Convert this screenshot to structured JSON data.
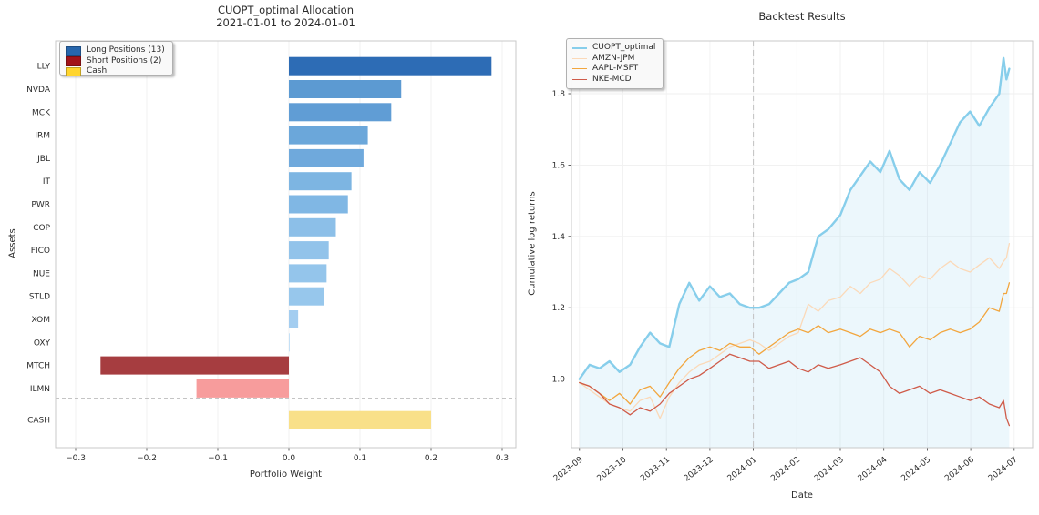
{
  "chart_data": [
    {
      "type": "bar",
      "orientation": "horizontal",
      "title_line1": "CUOPT_optimal Allocation",
      "title_line2": "2021-01-01 to 2024-01-01",
      "xlabel": "Portfolio Weight",
      "ylabel": "Assets",
      "xlim": [
        -0.328,
        0.322
      ],
      "xticks": [
        -0.3,
        -0.2,
        -0.1,
        0.0,
        0.1,
        0.2,
        0.3
      ],
      "xtick_labels": [
        "−0.3",
        "−0.2",
        "−0.1",
        "0.0",
        "0.1",
        "0.2",
        "0.3"
      ],
      "categories": [
        "LLY",
        "NVDA",
        "MCK",
        "IRM",
        "JBL",
        "IT",
        "PWR",
        "COP",
        "FICO",
        "NUE",
        "STLD",
        "XOM",
        "OXY",
        "MTCH",
        "ILMN",
        "CASH"
      ],
      "values": [
        0.285,
        0.158,
        0.144,
        0.111,
        0.105,
        0.088,
        0.083,
        0.066,
        0.056,
        0.053,
        0.049,
        0.013,
        0.001,
        -0.265,
        -0.13,
        0.2
      ],
      "groups": [
        "long",
        "long",
        "long",
        "long",
        "long",
        "long",
        "long",
        "long",
        "long",
        "long",
        "long",
        "long",
        "long",
        "short",
        "short",
        "cash"
      ],
      "bar_colors": [
        "#2d6cb5",
        "#5c9ad2",
        "#609dd5",
        "#6ba7da",
        "#6fa9dc",
        "#7db5e2",
        "#80b7e4",
        "#8cbfe8",
        "#92c3ea",
        "#94c5eb",
        "#97c7ec",
        "#a3cdf0",
        "#b5d8f4",
        "#a63d40",
        "#f79c9c",
        "#f9e089"
      ],
      "separator_before_category": "CASH",
      "legend": [
        {
          "label": "Long Positions (13)",
          "color": "#2766ac"
        },
        {
          "label": "Short Positions (2)",
          "color": "#a21318"
        },
        {
          "label": "Cash",
          "color": "#ffd52e"
        }
      ]
    },
    {
      "type": "line",
      "title": "Backtest Results",
      "xlabel": "Date",
      "ylabel": "Cumulative log returns",
      "ylim": [
        0.81,
        1.95
      ],
      "yticks": [
        1.0,
        1.2,
        1.4,
        1.6,
        1.8
      ],
      "ytick_labels": [
        "1.0",
        "1.2",
        "1.4",
        "1.6",
        "1.8"
      ],
      "xtick_labels": [
        "2023-09",
        "2023-10",
        "2023-11",
        "2023-12",
        "2024-01",
        "2024-02",
        "2024-03",
        "2024-04",
        "2024-05",
        "2024-06",
        "2024-07"
      ],
      "vline_date": "2024-01-01",
      "fill_color_rgba": "rgba(135,206,235,0.16)",
      "series": [
        {
          "name": "CUOPT_optimal",
          "color": "#87ceeb",
          "width": 2.4,
          "fill": true,
          "points": [
            [
              "2023-09-01",
              1.0
            ],
            [
              "2023-09-08",
              1.04
            ],
            [
              "2023-09-15",
              1.03
            ],
            [
              "2023-09-22",
              1.05
            ],
            [
              "2023-09-29",
              1.02
            ],
            [
              "2023-10-06",
              1.04
            ],
            [
              "2023-10-13",
              1.09
            ],
            [
              "2023-10-20",
              1.13
            ],
            [
              "2023-10-27",
              1.1
            ],
            [
              "2023-11-03",
              1.09
            ],
            [
              "2023-11-10",
              1.21
            ],
            [
              "2023-11-17",
              1.27
            ],
            [
              "2023-11-24",
              1.22
            ],
            [
              "2023-12-01",
              1.26
            ],
            [
              "2023-12-08",
              1.23
            ],
            [
              "2023-12-15",
              1.24
            ],
            [
              "2023-12-22",
              1.21
            ],
            [
              "2023-12-29",
              1.2
            ],
            [
              "2024-01-05",
              1.2
            ],
            [
              "2024-01-12",
              1.21
            ],
            [
              "2024-01-19",
              1.24
            ],
            [
              "2024-01-26",
              1.27
            ],
            [
              "2024-02-02",
              1.28
            ],
            [
              "2024-02-09",
              1.3
            ],
            [
              "2024-02-16",
              1.4
            ],
            [
              "2024-02-23",
              1.42
            ],
            [
              "2024-03-01",
              1.46
            ],
            [
              "2024-03-08",
              1.53
            ],
            [
              "2024-03-15",
              1.57
            ],
            [
              "2024-03-22",
              1.61
            ],
            [
              "2024-03-29",
              1.58
            ],
            [
              "2024-04-05",
              1.64
            ],
            [
              "2024-04-12",
              1.56
            ],
            [
              "2024-04-19",
              1.53
            ],
            [
              "2024-04-26",
              1.58
            ],
            [
              "2024-05-03",
              1.55
            ],
            [
              "2024-05-10",
              1.6
            ],
            [
              "2024-05-17",
              1.66
            ],
            [
              "2024-05-24",
              1.72
            ],
            [
              "2024-05-31",
              1.75
            ],
            [
              "2024-06-07",
              1.71
            ],
            [
              "2024-06-14",
              1.76
            ],
            [
              "2024-06-21",
              1.8
            ],
            [
              "2024-06-24",
              1.9
            ],
            [
              "2024-06-26",
              1.84
            ],
            [
              "2024-06-28",
              1.87
            ]
          ]
        },
        {
          "name": "AMZN-JPM",
          "color": "#fbd9b8",
          "width": 1.3,
          "fill": false,
          "points": [
            [
              "2023-09-01",
              0.99
            ],
            [
              "2023-09-08",
              0.97
            ],
            [
              "2023-09-15",
              0.95
            ],
            [
              "2023-09-22",
              0.93
            ],
            [
              "2023-09-29",
              0.92
            ],
            [
              "2023-10-06",
              0.91
            ],
            [
              "2023-10-13",
              0.94
            ],
            [
              "2023-10-20",
              0.95
            ],
            [
              "2023-10-27",
              0.89
            ],
            [
              "2023-11-03",
              0.95
            ],
            [
              "2023-11-10",
              0.99
            ],
            [
              "2023-11-17",
              1.02
            ],
            [
              "2023-11-24",
              1.04
            ],
            [
              "2023-12-01",
              1.05
            ],
            [
              "2023-12-08",
              1.07
            ],
            [
              "2023-12-15",
              1.09
            ],
            [
              "2023-12-22",
              1.1
            ],
            [
              "2023-12-29",
              1.11
            ],
            [
              "2024-01-05",
              1.1
            ],
            [
              "2024-01-12",
              1.08
            ],
            [
              "2024-01-19",
              1.1
            ],
            [
              "2024-01-26",
              1.12
            ],
            [
              "2024-02-02",
              1.13
            ],
            [
              "2024-02-09",
              1.21
            ],
            [
              "2024-02-16",
              1.19
            ],
            [
              "2024-02-23",
              1.22
            ],
            [
              "2024-03-01",
              1.23
            ],
            [
              "2024-03-08",
              1.26
            ],
            [
              "2024-03-15",
              1.24
            ],
            [
              "2024-03-22",
              1.27
            ],
            [
              "2024-03-29",
              1.28
            ],
            [
              "2024-04-05",
              1.31
            ],
            [
              "2024-04-12",
              1.29
            ],
            [
              "2024-04-19",
              1.26
            ],
            [
              "2024-04-26",
              1.29
            ],
            [
              "2024-05-03",
              1.28
            ],
            [
              "2024-05-10",
              1.31
            ],
            [
              "2024-05-17",
              1.33
            ],
            [
              "2024-05-24",
              1.31
            ],
            [
              "2024-05-31",
              1.3
            ],
            [
              "2024-06-07",
              1.32
            ],
            [
              "2024-06-14",
              1.34
            ],
            [
              "2024-06-21",
              1.31
            ],
            [
              "2024-06-24",
              1.33
            ],
            [
              "2024-06-26",
              1.34
            ],
            [
              "2024-06-28",
              1.38
            ]
          ]
        },
        {
          "name": "AAPL-MSFT",
          "color": "#f2a63e",
          "width": 1.3,
          "fill": false,
          "points": [
            [
              "2023-09-01",
              0.99
            ],
            [
              "2023-09-08",
              0.98
            ],
            [
              "2023-09-15",
              0.96
            ],
            [
              "2023-09-22",
              0.94
            ],
            [
              "2023-09-29",
              0.96
            ],
            [
              "2023-10-06",
              0.93
            ],
            [
              "2023-10-13",
              0.97
            ],
            [
              "2023-10-20",
              0.98
            ],
            [
              "2023-10-27",
              0.95
            ],
            [
              "2023-11-03",
              0.99
            ],
            [
              "2023-11-10",
              1.03
            ],
            [
              "2023-11-17",
              1.06
            ],
            [
              "2023-11-24",
              1.08
            ],
            [
              "2023-12-01",
              1.09
            ],
            [
              "2023-12-08",
              1.08
            ],
            [
              "2023-12-15",
              1.1
            ],
            [
              "2023-12-22",
              1.09
            ],
            [
              "2023-12-29",
              1.09
            ],
            [
              "2024-01-05",
              1.07
            ],
            [
              "2024-01-12",
              1.09
            ],
            [
              "2024-01-19",
              1.11
            ],
            [
              "2024-01-26",
              1.13
            ],
            [
              "2024-02-02",
              1.14
            ],
            [
              "2024-02-09",
              1.13
            ],
            [
              "2024-02-16",
              1.15
            ],
            [
              "2024-02-23",
              1.13
            ],
            [
              "2024-03-01",
              1.14
            ],
            [
              "2024-03-08",
              1.13
            ],
            [
              "2024-03-15",
              1.12
            ],
            [
              "2024-03-22",
              1.14
            ],
            [
              "2024-03-29",
              1.13
            ],
            [
              "2024-04-05",
              1.14
            ],
            [
              "2024-04-12",
              1.13
            ],
            [
              "2024-04-19",
              1.09
            ],
            [
              "2024-04-26",
              1.12
            ],
            [
              "2024-05-03",
              1.11
            ],
            [
              "2024-05-10",
              1.13
            ],
            [
              "2024-05-17",
              1.14
            ],
            [
              "2024-05-24",
              1.13
            ],
            [
              "2024-05-31",
              1.14
            ],
            [
              "2024-06-07",
              1.16
            ],
            [
              "2024-06-14",
              1.2
            ],
            [
              "2024-06-21",
              1.19
            ],
            [
              "2024-06-24",
              1.24
            ],
            [
              "2024-06-26",
              1.24
            ],
            [
              "2024-06-28",
              1.27
            ]
          ]
        },
        {
          "name": "NKE-MCD",
          "color": "#cf5b49",
          "width": 1.3,
          "fill": false,
          "points": [
            [
              "2023-09-01",
              0.99
            ],
            [
              "2023-09-08",
              0.98
            ],
            [
              "2023-09-15",
              0.96
            ],
            [
              "2023-09-22",
              0.93
            ],
            [
              "2023-09-29",
              0.92
            ],
            [
              "2023-10-06",
              0.9
            ],
            [
              "2023-10-13",
              0.92
            ],
            [
              "2023-10-20",
              0.91
            ],
            [
              "2023-10-27",
              0.93
            ],
            [
              "2023-11-03",
              0.96
            ],
            [
              "2023-11-10",
              0.98
            ],
            [
              "2023-11-17",
              1.0
            ],
            [
              "2023-11-24",
              1.01
            ],
            [
              "2023-12-01",
              1.03
            ],
            [
              "2023-12-08",
              1.05
            ],
            [
              "2023-12-15",
              1.07
            ],
            [
              "2023-12-22",
              1.06
            ],
            [
              "2023-12-29",
              1.05
            ],
            [
              "2024-01-05",
              1.05
            ],
            [
              "2024-01-12",
              1.03
            ],
            [
              "2024-01-19",
              1.04
            ],
            [
              "2024-01-26",
              1.05
            ],
            [
              "2024-02-02",
              1.03
            ],
            [
              "2024-02-09",
              1.02
            ],
            [
              "2024-02-16",
              1.04
            ],
            [
              "2024-02-23",
              1.03
            ],
            [
              "2024-03-01",
              1.04
            ],
            [
              "2024-03-08",
              1.05
            ],
            [
              "2024-03-15",
              1.06
            ],
            [
              "2024-03-22",
              1.04
            ],
            [
              "2024-03-29",
              1.02
            ],
            [
              "2024-04-05",
              0.98
            ],
            [
              "2024-04-12",
              0.96
            ],
            [
              "2024-04-19",
              0.97
            ],
            [
              "2024-04-26",
              0.98
            ],
            [
              "2024-05-03",
              0.96
            ],
            [
              "2024-05-10",
              0.97
            ],
            [
              "2024-05-17",
              0.96
            ],
            [
              "2024-05-24",
              0.95
            ],
            [
              "2024-05-31",
              0.94
            ],
            [
              "2024-06-07",
              0.95
            ],
            [
              "2024-06-14",
              0.93
            ],
            [
              "2024-06-21",
              0.92
            ],
            [
              "2024-06-24",
              0.94
            ],
            [
              "2024-06-26",
              0.89
            ],
            [
              "2024-06-28",
              0.87
            ]
          ]
        }
      ]
    }
  ]
}
